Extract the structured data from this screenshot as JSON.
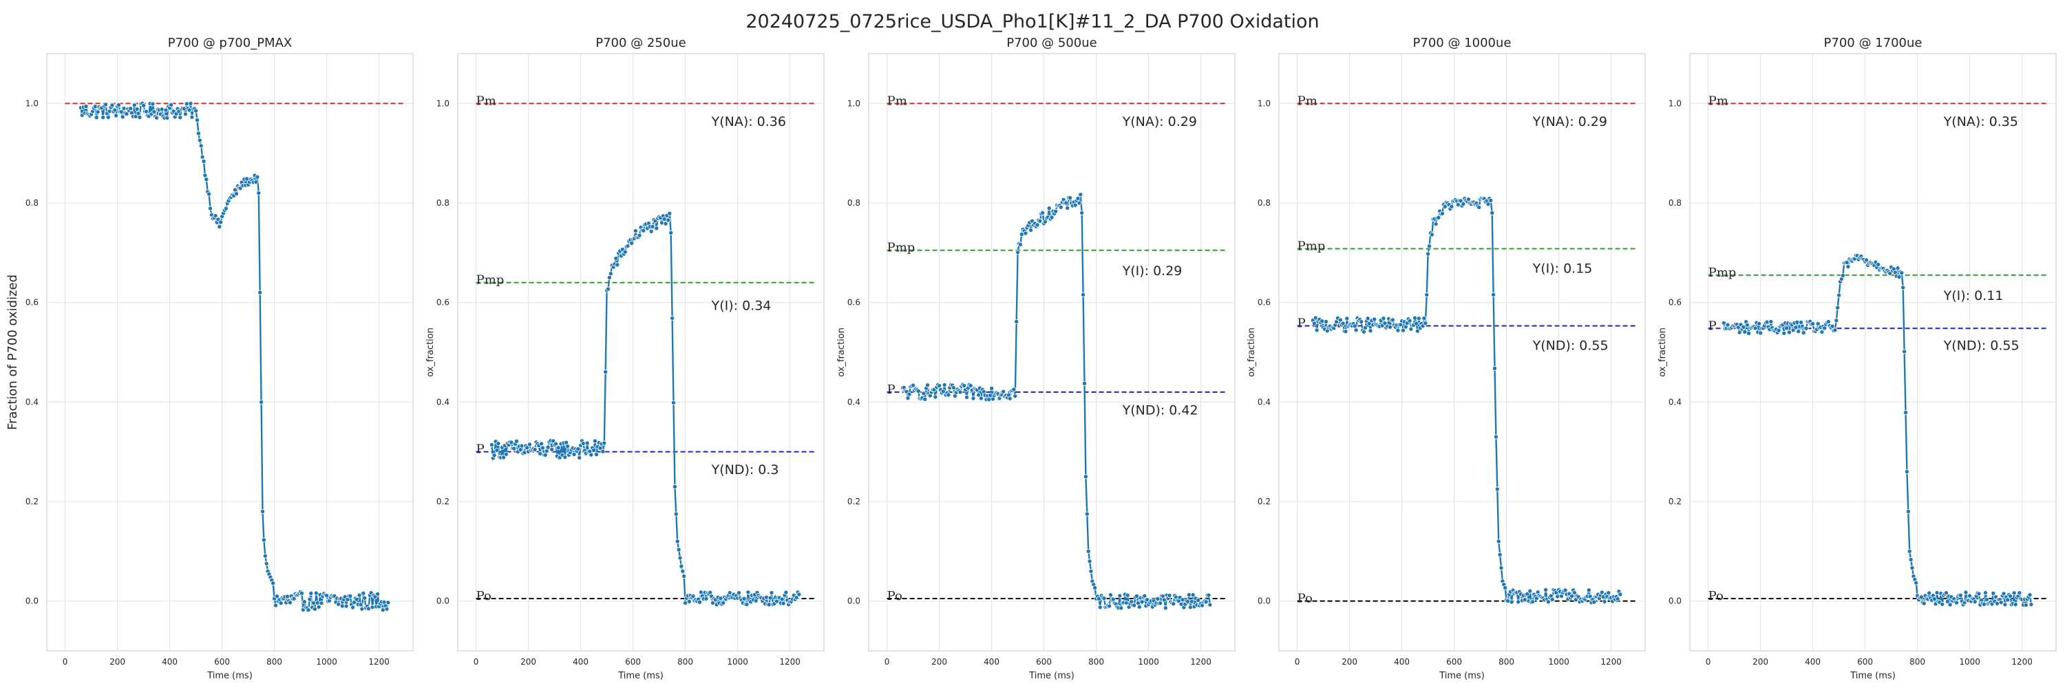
{
  "figure": {
    "title": "20240725_0725rice_USDA_Pho1[K]#11_2_DA P700 Oxidation"
  },
  "colors": {
    "series": "#1f77b4",
    "pm_line": "#d62728",
    "pmp_line": "#2ca02c",
    "p_line": "#1f1fd6",
    "po_line": "#000000",
    "grid": "#e5e5e5",
    "frame": "#d0d0d0"
  },
  "chart_data": [
    {
      "type": "line",
      "title": "P700 @ p700_PMAX",
      "xlabel": "Time (ms)",
      "ylabel": "Fraction of P700 oxidized",
      "xlim": [
        -70,
        1330
      ],
      "ylim": [
        -0.1,
        1.1
      ],
      "xticks": [
        0,
        200,
        400,
        600,
        800,
        1000,
        1200
      ],
      "yticks": [
        0.0,
        0.2,
        0.4,
        0.6,
        0.8,
        1.0
      ],
      "grid": true,
      "reference_lines": [
        {
          "label": "",
          "y": 1.0,
          "color": "pm_line"
        }
      ],
      "annotations": [],
      "segments": [
        {
          "x_start": 60,
          "x_end": 500,
          "base": 0.985,
          "noise": 0.015
        },
        {
          "x_start": 500,
          "x_end": 740,
          "knots": [
            [
              500,
              0.98
            ],
            [
              530,
              0.88
            ],
            [
              560,
              0.78
            ],
            [
              590,
              0.755
            ],
            [
              620,
              0.8
            ],
            [
              680,
              0.84
            ],
            [
              735,
              0.85
            ]
          ],
          "noise": 0.008
        },
        {
          "x_start": 740,
          "x_end": 800,
          "knots": [
            [
              740,
              0.82
            ],
            [
              745,
              0.62
            ],
            [
              750,
              0.4
            ],
            [
              755,
              0.18
            ],
            [
              762,
              0.1
            ],
            [
              775,
              0.06
            ],
            [
              800,
              0.03
            ]
          ],
          "noise": 0.0
        },
        {
          "x_start": 800,
          "x_end": 1240,
          "base": 0.0,
          "noise": 0.018
        }
      ]
    },
    {
      "type": "line",
      "title": "P700 @ 250ue",
      "xlabel": "Time (ms)",
      "ylabel": "ox_fraction",
      "xlim": [
        -70,
        1330
      ],
      "ylim": [
        -0.1,
        1.1
      ],
      "xticks": [
        0,
        200,
        400,
        600,
        800,
        1000,
        1200
      ],
      "yticks": [
        0.0,
        0.2,
        0.4,
        0.6,
        0.8,
        1.0
      ],
      "grid": true,
      "reference_lines": [
        {
          "label": "Pm",
          "y": 1.0,
          "color": "pm_line"
        },
        {
          "label": "Pmp",
          "y": 0.64,
          "color": "pmp_line"
        },
        {
          "label": "P",
          "y": 0.3,
          "color": "p_line"
        },
        {
          "label": "Po",
          "y": 0.005,
          "color": "po_line"
        }
      ],
      "annotations": [
        {
          "text": "Y(NA): 0.36",
          "x": 900,
          "y": 0.955
        },
        {
          "text": "Y(I): 0.34",
          "x": 900,
          "y": 0.585
        },
        {
          "text": "Y(ND): 0.3",
          "x": 900,
          "y": 0.255
        }
      ],
      "segments": [
        {
          "x_start": 60,
          "x_end": 490,
          "base": 0.305,
          "noise": 0.018
        },
        {
          "x_start": 490,
          "x_end": 745,
          "knots": [
            [
              490,
              0.32
            ],
            [
              500,
              0.62
            ],
            [
              520,
              0.67
            ],
            [
              560,
              0.7
            ],
            [
              600,
              0.73
            ],
            [
              650,
              0.75
            ],
            [
              700,
              0.76
            ],
            [
              745,
              0.77
            ]
          ],
          "noise": 0.012
        },
        {
          "x_start": 745,
          "x_end": 800,
          "knots": [
            [
              745,
              0.74
            ],
            [
              752,
              0.5
            ],
            [
              760,
              0.23
            ],
            [
              770,
              0.12
            ],
            [
              785,
              0.07
            ],
            [
              800,
              0.04
            ]
          ],
          "noise": 0.0
        },
        {
          "x_start": 800,
          "x_end": 1240,
          "base": 0.005,
          "noise": 0.013
        }
      ]
    },
    {
      "type": "line",
      "title": "P700 @ 500ue",
      "xlabel": "Time (ms)",
      "ylabel": "ox_fraction",
      "xlim": [
        -70,
        1330
      ],
      "ylim": [
        -0.1,
        1.1
      ],
      "xticks": [
        0,
        200,
        400,
        600,
        800,
        1000,
        1200
      ],
      "yticks": [
        0.0,
        0.2,
        0.4,
        0.6,
        0.8,
        1.0
      ],
      "grid": true,
      "reference_lines": [
        {
          "label": "Pm",
          "y": 1.0,
          "color": "pm_line"
        },
        {
          "label": "Pmp",
          "y": 0.705,
          "color": "pmp_line"
        },
        {
          "label": "P",
          "y": 0.42,
          "color": "p_line"
        },
        {
          "label": "Po",
          "y": 0.005,
          "color": "po_line"
        }
      ],
      "annotations": [
        {
          "text": "Y(NA): 0.29",
          "x": 900,
          "y": 0.955
        },
        {
          "text": "Y(I): 0.29",
          "x": 900,
          "y": 0.655
        },
        {
          "text": "Y(ND): 0.42",
          "x": 900,
          "y": 0.375
        }
      ],
      "segments": [
        {
          "x_start": 60,
          "x_end": 490,
          "base": 0.42,
          "noise": 0.015
        },
        {
          "x_start": 490,
          "x_end": 745,
          "knots": [
            [
              490,
              0.42
            ],
            [
              500,
              0.7
            ],
            [
              520,
              0.74
            ],
            [
              560,
              0.76
            ],
            [
              600,
              0.77
            ],
            [
              650,
              0.79
            ],
            [
              700,
              0.8
            ],
            [
              745,
              0.81
            ]
          ],
          "noise": 0.012
        },
        {
          "x_start": 745,
          "x_end": 800,
          "knots": [
            [
              745,
              0.78
            ],
            [
              752,
              0.55
            ],
            [
              760,
              0.25
            ],
            [
              770,
              0.1
            ],
            [
              785,
              0.04
            ],
            [
              800,
              0.02
            ]
          ],
          "noise": 0.0
        },
        {
          "x_start": 800,
          "x_end": 1240,
          "base": 0.0,
          "noise": 0.014
        }
      ]
    },
    {
      "type": "line",
      "title": "P700 @ 1000ue",
      "xlabel": "Time (ms)",
      "ylabel": "ox_fraction",
      "xlim": [
        -70,
        1330
      ],
      "ylim": [
        -0.1,
        1.1
      ],
      "xticks": [
        0,
        200,
        400,
        600,
        800,
        1000,
        1200
      ],
      "yticks": [
        0.0,
        0.2,
        0.4,
        0.6,
        0.8,
        1.0
      ],
      "grid": true,
      "reference_lines": [
        {
          "label": "Pm",
          "y": 1.0,
          "color": "pm_line"
        },
        {
          "label": "Pmp",
          "y": 0.708,
          "color": "pmp_line"
        },
        {
          "label": "P",
          "y": 0.553,
          "color": "p_line"
        },
        {
          "label": "Po",
          "y": 0.0,
          "color": "po_line"
        }
      ],
      "annotations": [
        {
          "text": "Y(NA): 0.29",
          "x": 900,
          "y": 0.955
        },
        {
          "text": "Y(I): 0.15",
          "x": 900,
          "y": 0.66
        },
        {
          "text": "Y(ND): 0.55",
          "x": 900,
          "y": 0.505
        }
      ],
      "segments": [
        {
          "x_start": 60,
          "x_end": 490,
          "base": 0.555,
          "noise": 0.014
        },
        {
          "x_start": 490,
          "x_end": 745,
          "knots": [
            [
              490,
              0.55
            ],
            [
              500,
              0.7
            ],
            [
              520,
              0.76
            ],
            [
              560,
              0.79
            ],
            [
              600,
              0.8
            ],
            [
              650,
              0.8
            ],
            [
              700,
              0.8
            ],
            [
              745,
              0.8
            ]
          ],
          "noise": 0.01
        },
        {
          "x_start": 745,
          "x_end": 800,
          "knots": [
            [
              745,
              0.78
            ],
            [
              752,
              0.55
            ],
            [
              760,
              0.33
            ],
            [
              770,
              0.12
            ],
            [
              785,
              0.04
            ],
            [
              800,
              0.02
            ]
          ],
          "noise": 0.0
        },
        {
          "x_start": 800,
          "x_end": 1240,
          "base": 0.01,
          "noise": 0.013
        }
      ]
    },
    {
      "type": "line",
      "title": "P700 @ 1700ue",
      "xlabel": "Time (ms)",
      "ylabel": "ox_fraction",
      "xlim": [
        -70,
        1330
      ],
      "ylim": [
        -0.1,
        1.1
      ],
      "xticks": [
        0,
        200,
        400,
        600,
        800,
        1000,
        1200
      ],
      "yticks": [
        0.0,
        0.2,
        0.4,
        0.6,
        0.8,
        1.0
      ],
      "grid": true,
      "reference_lines": [
        {
          "label": "Pm",
          "y": 1.0,
          "color": "pm_line"
        },
        {
          "label": "Pmp",
          "y": 0.655,
          "color": "pmp_line"
        },
        {
          "label": "P",
          "y": 0.548,
          "color": "p_line"
        },
        {
          "label": "Po",
          "y": 0.005,
          "color": "po_line"
        }
      ],
      "annotations": [
        {
          "text": "Y(NA): 0.35",
          "x": 900,
          "y": 0.955
        },
        {
          "text": "Y(I): 0.11",
          "x": 900,
          "y": 0.605
        },
        {
          "text": "Y(ND): 0.55",
          "x": 900,
          "y": 0.505
        }
      ],
      "segments": [
        {
          "x_start": 60,
          "x_end": 490,
          "base": 0.55,
          "noise": 0.012
        },
        {
          "x_start": 490,
          "x_end": 745,
          "knots": [
            [
              490,
              0.56
            ],
            [
              500,
              0.62
            ],
            [
              520,
              0.67
            ],
            [
              560,
              0.69
            ],
            [
              600,
              0.685
            ],
            [
              650,
              0.675
            ],
            [
              700,
              0.665
            ],
            [
              745,
              0.655
            ]
          ],
          "noise": 0.01
        },
        {
          "x_start": 745,
          "x_end": 800,
          "knots": [
            [
              745,
              0.63
            ],
            [
              752,
              0.45
            ],
            [
              760,
              0.26
            ],
            [
              770,
              0.1
            ],
            [
              785,
              0.05
            ],
            [
              800,
              0.03
            ]
          ],
          "noise": 0.0
        },
        {
          "x_start": 800,
          "x_end": 1240,
          "base": 0.005,
          "noise": 0.013
        }
      ]
    }
  ]
}
